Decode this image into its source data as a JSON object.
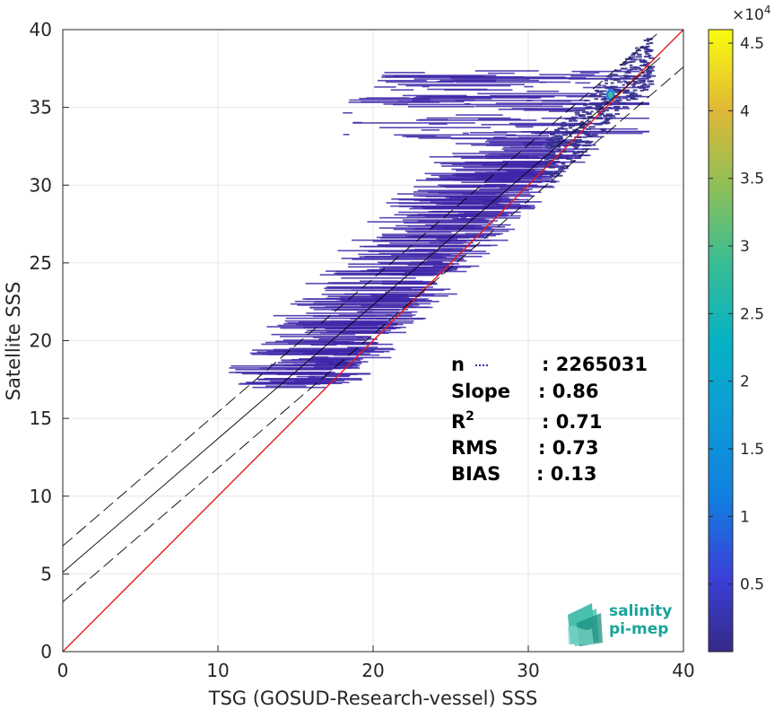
{
  "chart_data": {
    "type": "heatmap",
    "title": "",
    "xlabel": "TSG (GOSUD-Research-vessel) SSS",
    "ylabel": "Satellite SSS",
    "xlim": [
      0,
      40
    ],
    "ylim": [
      0,
      40
    ],
    "xticks": [
      "0",
      "10",
      "20",
      "30",
      "40"
    ],
    "yticks": [
      "0",
      "5",
      "10",
      "15",
      "20",
      "25",
      "30",
      "35",
      "40"
    ],
    "grid": true,
    "colormap": "parula",
    "colorbar": {
      "range": [
        0,
        46000
      ],
      "exponent_label": "×10⁴",
      "exponent_base": "×10",
      "exponent_power": "4",
      "tick_values": [
        0.5,
        1,
        1.5,
        2,
        2.5,
        3,
        3.5,
        4,
        4.5
      ],
      "tick_labels": [
        "0.5",
        "1",
        "1.5",
        "2",
        "2.5",
        "3",
        "3.5",
        "4",
        "4.5"
      ]
    },
    "lines": [
      {
        "name": "one-to-one",
        "color": "#e41a1c",
        "style": "solid",
        "x": [
          0,
          40
        ],
        "y": [
          0,
          40
        ]
      },
      {
        "name": "regression",
        "color": "#000000",
        "style": "solid",
        "x": [
          0,
          38.5
        ],
        "y": [
          5.1,
          38.2
        ]
      },
      {
        "name": "regression-upper",
        "color": "#000000",
        "style": "dashed",
        "x": [
          0,
          38.5
        ],
        "y": [
          6.8,
          39.9
        ]
      },
      {
        "name": "regression-lower",
        "color": "#000000",
        "style": "dashed",
        "x": [
          0,
          40
        ],
        "y": [
          3.2,
          37.6
        ]
      }
    ],
    "stats": [
      {
        "label": "n",
        "value": ": 2265031"
      },
      {
        "label": "Slope",
        "value": ": 0.86"
      },
      {
        "label": "R",
        "sup": "2",
        "value": ": 0.71"
      },
      {
        "label": "RMS",
        "value": ": 0.73"
      },
      {
        "label": "BIAS",
        "value": ": 0.13"
      }
    ],
    "density_peak": {
      "x": 35.3,
      "y": 35.8
    }
  },
  "logo": {
    "line1": "salinity",
    "line2": "pi-mep"
  },
  "colors": {
    "one_to_one": "#e41a1c",
    "scatter_base": "#3e26a8",
    "axis": "#262626",
    "grid": "#e6e6e6"
  }
}
